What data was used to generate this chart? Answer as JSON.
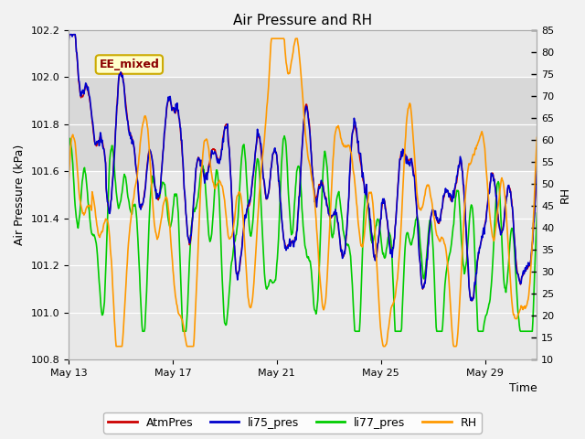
{
  "title": "Air Pressure and RH",
  "xlabel": "Time",
  "ylabel_left": "Air Pressure (kPa)",
  "ylabel_right": "RH",
  "ylim_left": [
    100.8,
    102.2
  ],
  "ylim_right": [
    10,
    85
  ],
  "yticks_left": [
    100.8,
    101.0,
    101.2,
    101.4,
    101.6,
    101.8,
    102.0,
    102.2
  ],
  "yticks_right": [
    10,
    15,
    20,
    25,
    30,
    35,
    40,
    45,
    50,
    55,
    60,
    65,
    70,
    75,
    80,
    85
  ],
  "x_tick_days": [
    13,
    17,
    21,
    25,
    29
  ],
  "annotation_text": "EE_mixed",
  "bg_color": "#f2f2f2",
  "plot_bg_color": "#e8e8e8",
  "band_ymin": 101.6,
  "band_ymax": 102.0,
  "band_color": "#d8d8d8",
  "colors": {
    "AtmPres": "#cc0000",
    "li75_pres": "#0000cc",
    "li77_pres": "#00cc00",
    "RH": "#ff9900"
  },
  "legend_labels": [
    "AtmPres",
    "li75_pres",
    "li77_pres",
    "RH"
  ],
  "figsize": [
    6.4,
    4.8
  ],
  "dpi": 100
}
